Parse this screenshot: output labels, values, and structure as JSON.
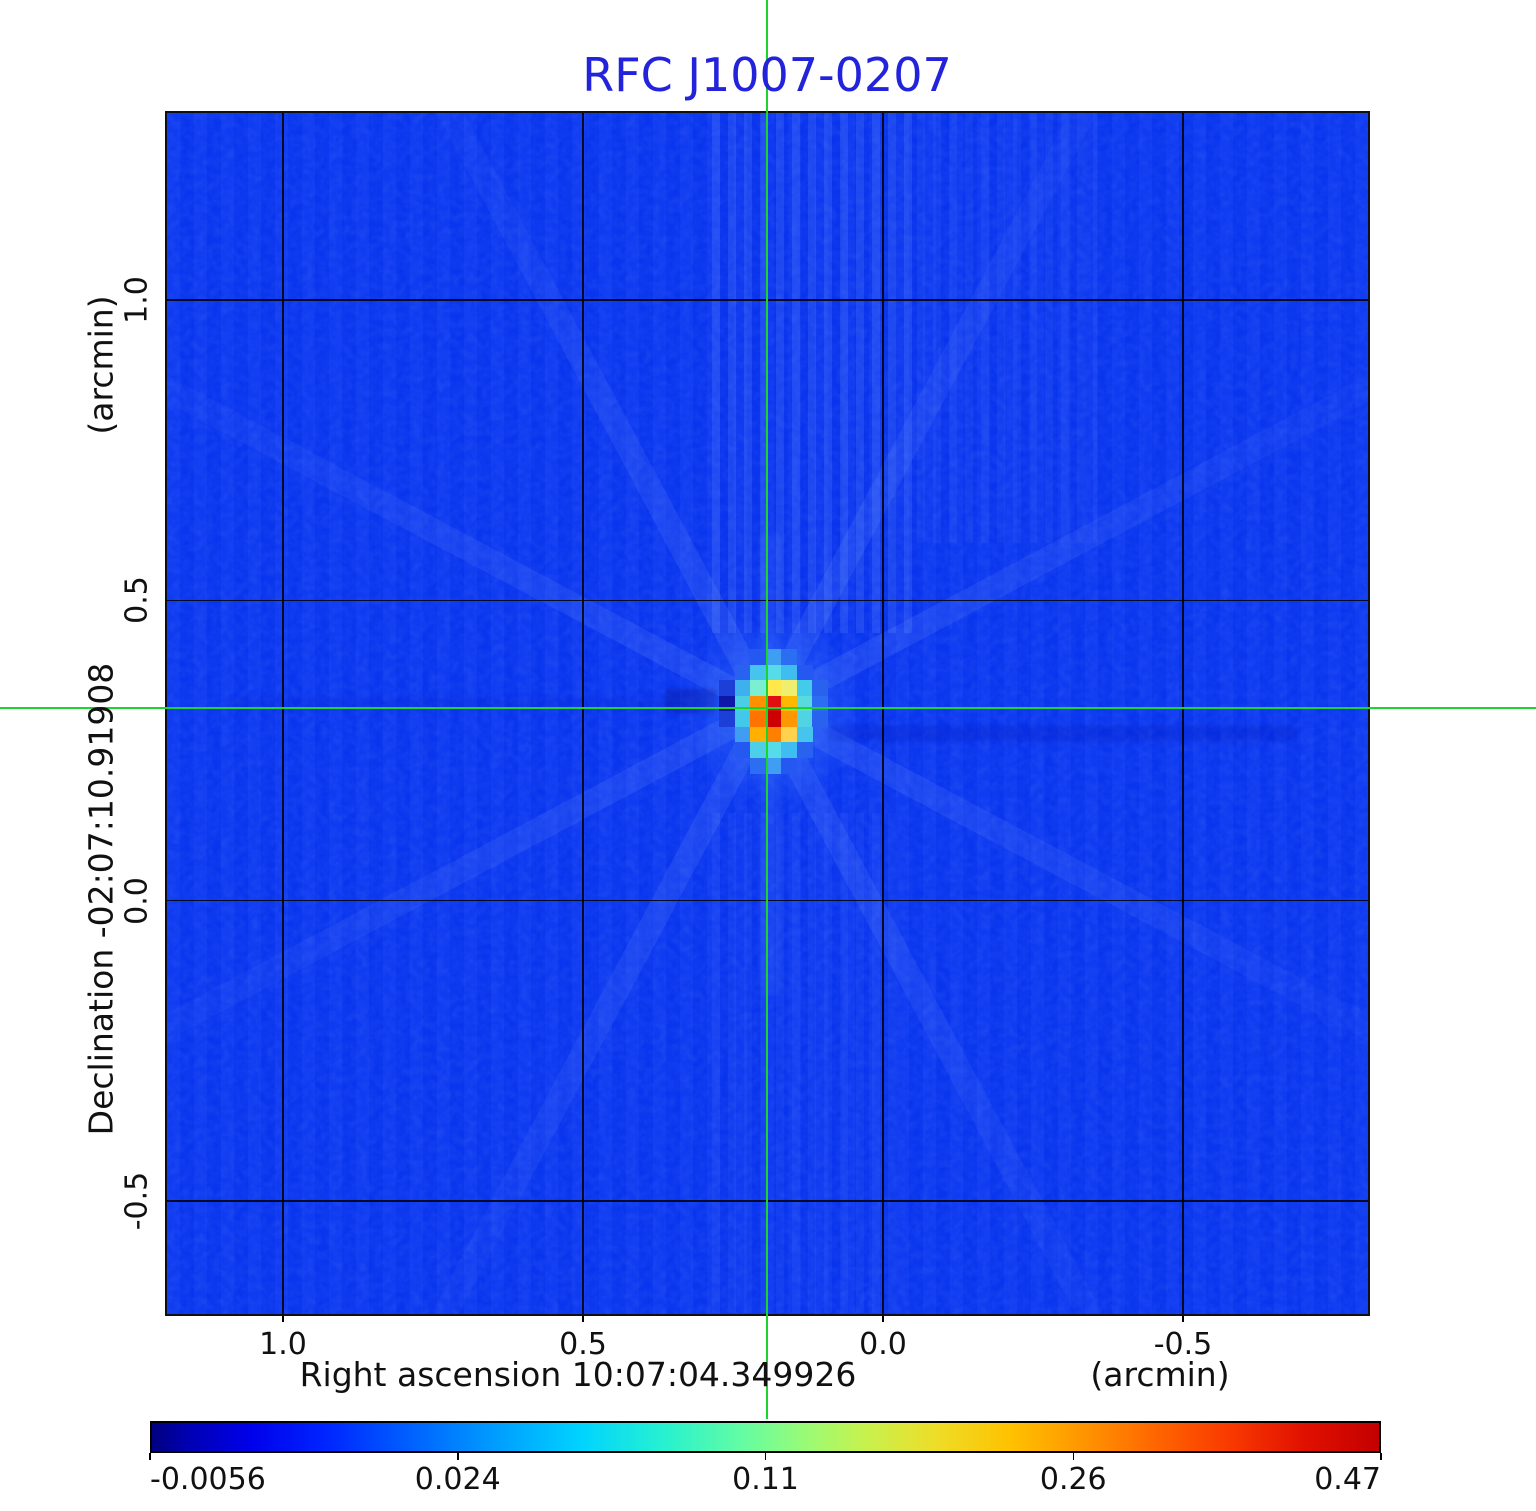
{
  "title": {
    "text": "RFC J1007-0207",
    "color": "#2323dc"
  },
  "axes": {
    "y": {
      "unit_label": "(arcmin)",
      "axis_label": "Declination  -02:07:10.91908",
      "tick_labels": [
        "1.0",
        "0.5",
        "0.0",
        "-0.5"
      ]
    },
    "x": {
      "unit_label": "(arcmin)",
      "axis_label": "Right ascension  10:07:04.349926",
      "tick_labels": [
        "1.0",
        "0.5",
        "0.0",
        "-0.5"
      ]
    }
  },
  "colorbar": {
    "tick_labels": [
      "-0.0056",
      "0.024",
      "0.11",
      "0.26",
      "0.47"
    ],
    "gradient_stops": [
      {
        "c": "#000080",
        "p": 0
      },
      {
        "c": "#0000b3",
        "p": 3
      },
      {
        "c": "#0000ea",
        "p": 8
      },
      {
        "c": "#0023ff",
        "p": 14
      },
      {
        "c": "#0060ff",
        "p": 21
      },
      {
        "c": "#009dff",
        "p": 28
      },
      {
        "c": "#00d4ff",
        "p": 35
      },
      {
        "c": "#29f2ce",
        "p": 42
      },
      {
        "c": "#63fca4",
        "p": 48
      },
      {
        "c": "#97fb78",
        "p": 53
      },
      {
        "c": "#c6f24f",
        "p": 58
      },
      {
        "c": "#eedd27",
        "p": 64
      },
      {
        "c": "#ffc100",
        "p": 70
      },
      {
        "c": "#ff9400",
        "p": 76
      },
      {
        "c": "#ff6400",
        "p": 82
      },
      {
        "c": "#f93800",
        "p": 88
      },
      {
        "c": "#e01000",
        "p": 94
      },
      {
        "c": "#c40000",
        "p": 100
      }
    ]
  },
  "crosshair": {
    "color": "#1dd32d",
    "ra": "10:07:04.349926",
    "dec": "-02:07:10.91908"
  },
  "plot": {
    "bg_color": "#0936f1"
  },
  "chart_data": {
    "type": "heatmap",
    "title": "RFC J1007-0207",
    "xlabel": "Right ascension 10:07:04.349926 (arcmin)",
    "ylabel": "Declination -02:07:10.91908 (arcmin)",
    "x_ticks": [
      1.0,
      0.5,
      0.0,
      -0.5
    ],
    "y_ticks": [
      1.0,
      0.5,
      0.0,
      -0.5
    ],
    "xlim": [
      1.1933,
      -0.8083
    ],
    "ylim": [
      -0.6883,
      1.3117
    ],
    "grid": true,
    "legend_position": "none",
    "colormap": "jet",
    "colorbar_ticks": [
      -0.0056,
      0.024,
      0.11,
      0.26,
      0.47
    ],
    "intensity_min": -0.0056,
    "intensity_max": 0.47,
    "source": {
      "ra_offset_arcmin": 0.19,
      "dec_offset_arcmin": 0.32,
      "peak_intensity": 0.47
    },
    "blob_cells": [
      [
        "",
        "",
        "#2458f0",
        "#3f9df2",
        "#2b6ef2",
        "",
        ""
      ],
      [
        "",
        "#2a62f0",
        "#45c4ee",
        "#55dce8",
        "#40bdf0",
        "#2458f0",
        ""
      ],
      [
        "#1c3fd8",
        "#3fb0ee",
        "#7ceed2",
        "#ffe84a",
        "#f0ee6e",
        "#45cbea",
        "#2a62f0"
      ],
      [
        "#0d17a8",
        "#48cfe6",
        "#ff9000",
        "#e01010",
        "#ffb800",
        "#58dade",
        "#2b6ef2"
      ],
      [
        "#1c3fd8",
        "#42c8ea",
        "#ff7400",
        "#cc0000",
        "#ff9800",
        "#50d4e4",
        "#2a62f0"
      ],
      [
        "",
        "#3f9df2",
        "#ffb000",
        "#ff8000",
        "#ffd24e",
        "#45c4ee",
        ""
      ],
      [
        "",
        "#2458f0",
        "#4ecfe8",
        "#55dce8",
        "#40bdf0",
        "#2a62f0",
        ""
      ],
      [
        "",
        "",
        "#2b6ef2",
        "#3f9df2",
        "#2458f0",
        "",
        ""
      ]
    ]
  }
}
